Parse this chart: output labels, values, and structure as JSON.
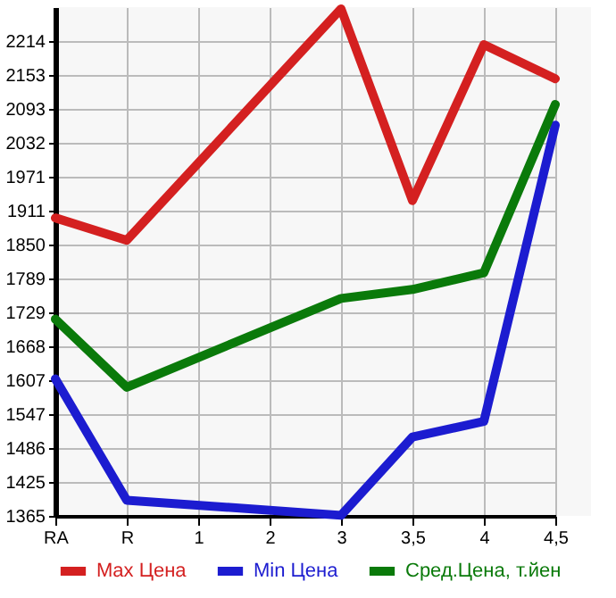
{
  "chart_data": {
    "type": "line",
    "categories": [
      "RA",
      "R",
      "1",
      "2",
      "3",
      "3,5",
      "4",
      "4,5"
    ],
    "series": [
      {
        "name": "Max Цена",
        "color": "#d42020",
        "values": [
          1898,
          1858,
          null,
          null,
          2272,
          1929,
          2208,
          2147
        ]
      },
      {
        "name": "Min Цена",
        "color": "#1c1cd0",
        "values": [
          1610,
          1393,
          null,
          null,
          1366,
          1506,
          1534,
          2064
        ]
      },
      {
        "name": "Сред.Цена, т.йен",
        "color": "#0a7a0a",
        "values": [
          1717,
          1595,
          null,
          null,
          1754,
          1770,
          1800,
          2101
        ]
      }
    ],
    "ylim": [
      1365,
      2275
    ],
    "yticks": [
      1365,
      1425,
      1486,
      1547,
      1607,
      1668,
      1729,
      1789,
      1850,
      1911,
      1971,
      2032,
      2093,
      2153,
      2214
    ],
    "grid": true,
    "legend": "bottom",
    "marker": "none",
    "line_style": "solid"
  }
}
